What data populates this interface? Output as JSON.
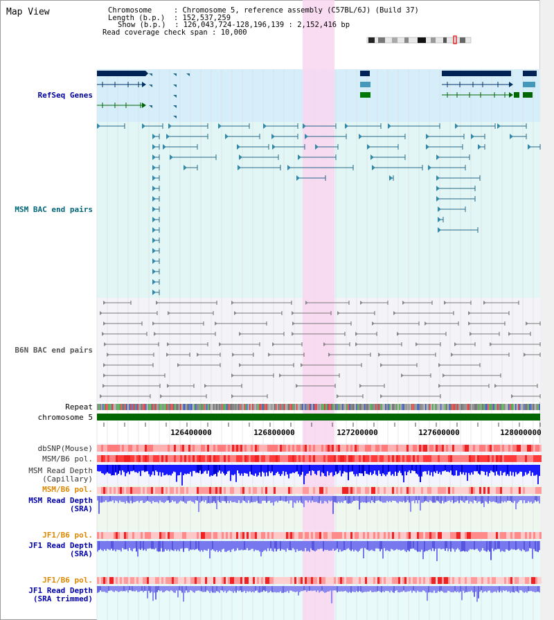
{
  "view_title": "Map View",
  "info": {
    "chromosome_label": "Chromosome",
    "chromosome_value": "Chromosome 5, reference assembly (C57BL/6J) (Build 37)",
    "length_label": "Length (b.p.)",
    "length_value": "152,537,259",
    "show_label": "Show (b.p.)",
    "show_value": "126,043,724-128,196,139 : 2,152,416 bp",
    "coverage_label": "Read coverage check span",
    "coverage_value": "10,000"
  },
  "tracks": {
    "refseq": "RefSeq Genes",
    "msm_bac": "MSM BAC end pairs",
    "b6n_bac": "B6N BAC end pairs",
    "repeat": "Repeat",
    "chromosome": "chromosome 5",
    "dbsnp": "dbSNP(Mouse)",
    "msm_b6_pol": "MSM/B6 pol.",
    "msm_depth_cap_1": "MSM Read Depth",
    "msm_depth_cap_2": "(Capillary)",
    "msm_b6_pol_sra": "MSM/B6 pol.",
    "msm_depth_sra_1": "MSM Read Depth",
    "msm_depth_sra_2": "(SRA)",
    "jf1_b6_pol": "JF1/B6 pol.",
    "jf1_depth_sra_1": "JF1 Read Depth",
    "jf1_depth_sra_2": "(SRA)",
    "jf1_b6_pol_trim": "JF1/B6 pol.",
    "jf1_depth_trim_1": "JF1 Read Depth",
    "jf1_depth_trim_2": "(SRA trimmed)"
  },
  "ruler_ticks": [
    "126400000",
    "126800000",
    "127200000",
    "127600000",
    "128000000"
  ],
  "colors": {
    "refseq_label": "#000099",
    "msm_label": "#006677",
    "b6n_label": "#555555",
    "orange_label": "#dd8800",
    "blue_label": "#0000aa",
    "highlight": "#f9d6f0",
    "chromosome_bar": "#006600",
    "refseq_bg": "#d6eefa",
    "msm_bg": "#e2f7f5"
  }
}
